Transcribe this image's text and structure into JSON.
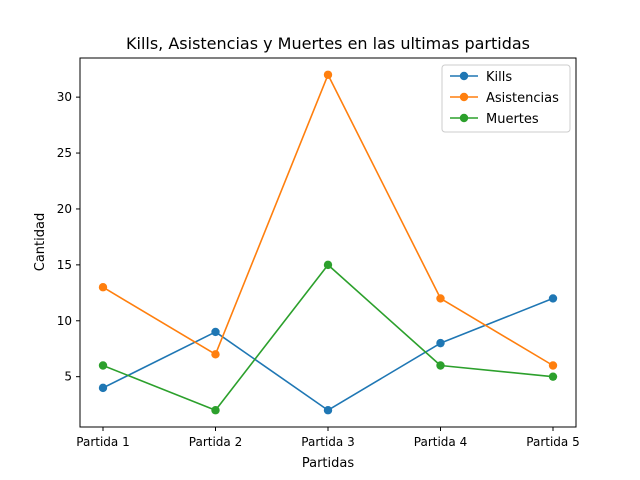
{
  "chart_data": {
    "type": "line",
    "title": "Kills, Asistencias y Muertes en las ultimas partidas",
    "xlabel": "Partidas",
    "ylabel": "Cantidad",
    "categories": [
      "Partida 1",
      "Partida 2",
      "Partida 3",
      "Partida 4",
      "Partida 5"
    ],
    "ylim": [
      0.5,
      33.5
    ],
    "yticks": [
      5,
      10,
      15,
      20,
      25,
      30
    ],
    "grid": false,
    "legend_position": "top-right",
    "series": [
      {
        "name": "Kills",
        "values": [
          4,
          9,
          2,
          8,
          12
        ],
        "color": "#1f77b4"
      },
      {
        "name": "Asistencias",
        "values": [
          13,
          7,
          32,
          12,
          6
        ],
        "color": "#ff7f0e"
      },
      {
        "name": "Muertes",
        "values": [
          6,
          2,
          15,
          6,
          5
        ],
        "color": "#2ca02c"
      }
    ]
  }
}
